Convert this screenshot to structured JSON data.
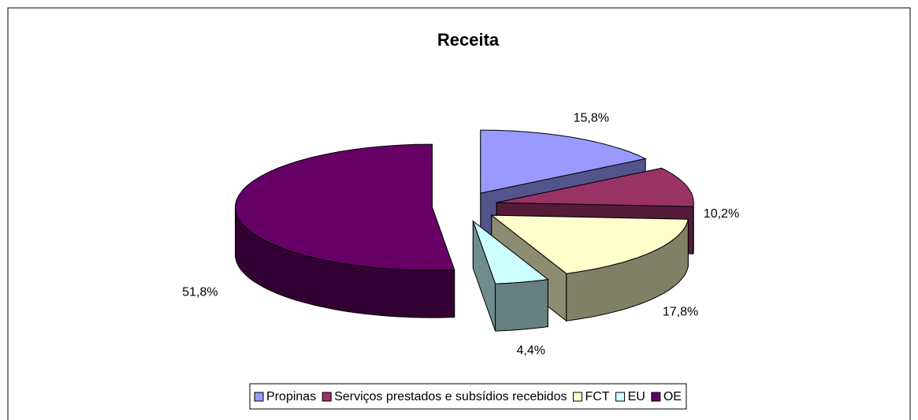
{
  "chart_data": {
    "type": "pie3d",
    "title": "Receita",
    "categories": [
      "Propinas",
      "Serviços prestados e subsídios recebidos",
      "FCT",
      "EU",
      "OE"
    ],
    "values": [
      15.8,
      10.2,
      17.8,
      4.4,
      51.8
    ],
    "value_labels": [
      "15,8%",
      "10,2%",
      "17,8%",
      "4,4%",
      "51,8%"
    ],
    "colors": [
      "#9999ff",
      "#993366",
      "#ffffcc",
      "#ccffff",
      "#660066"
    ],
    "legend": "bottom"
  }
}
